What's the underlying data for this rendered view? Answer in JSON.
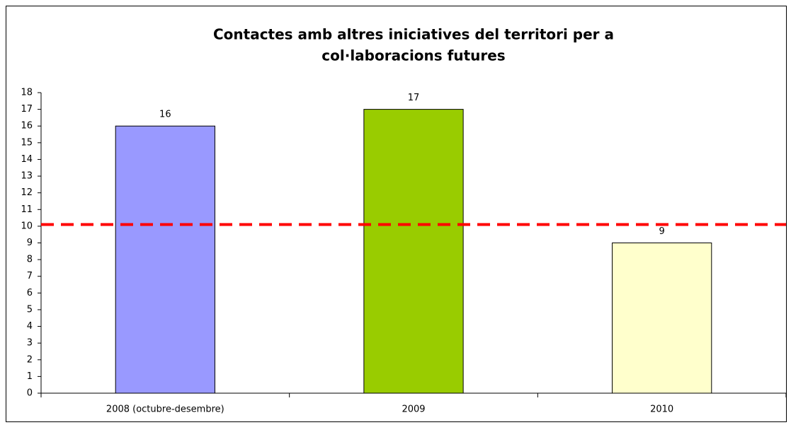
{
  "chart_data": {
    "type": "bar",
    "title": [
      "Contactes amb altres iniciatives del territori per a",
      "col·laboracions futures"
    ],
    "categories": [
      "2008 (octubre-desembre)",
      "2009",
      "2010"
    ],
    "values": [
      16,
      17,
      9
    ],
    "colors": [
      "#9999ff",
      "#99cc00",
      "#ffffcc"
    ],
    "ylim": [
      0,
      18
    ],
    "yticks": [
      0,
      1,
      2,
      3,
      4,
      5,
      6,
      7,
      8,
      9,
      10,
      11,
      12,
      13,
      14,
      15,
      16,
      17,
      18
    ],
    "grid": false,
    "reference_line": {
      "value": 10.1,
      "color": "#ff0000"
    }
  }
}
